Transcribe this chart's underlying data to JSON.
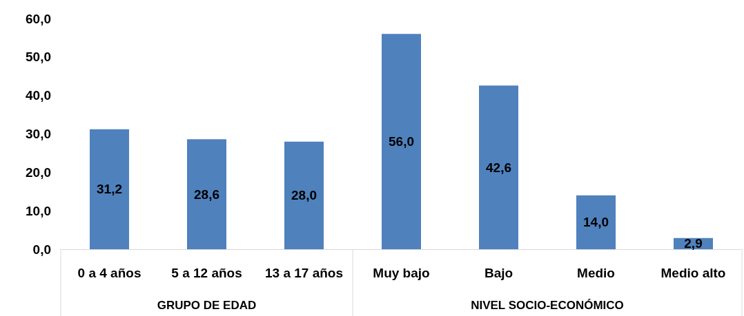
{
  "chart_data": {
    "type": "bar",
    "categories": [
      "0 a 4 años",
      "5 a 12 años",
      "13 a 17 años",
      "Muy bajo",
      "Bajo",
      "Medio",
      "Medio alto"
    ],
    "values": [
      31.2,
      28.6,
      28.0,
      56.0,
      42.6,
      14.0,
      2.9
    ],
    "value_labels": [
      "31,2",
      "28,6",
      "28,0",
      "56,0",
      "42,6",
      "14,0",
      "2,9"
    ],
    "color": "#4f81bd",
    "grid": false,
    "ylim": [
      0,
      60
    ],
    "yticks": [
      {
        "value": 0,
        "label": "0,0"
      },
      {
        "value": 10,
        "label": "10,0"
      },
      {
        "value": 20,
        "label": "20,0"
      },
      {
        "value": 30,
        "label": "30,0"
      },
      {
        "value": 40,
        "label": "40,0"
      },
      {
        "value": 50,
        "label": "50,0"
      },
      {
        "value": 60,
        "label": "60,0"
      }
    ],
    "annotations": [
      "GRUPO DE EDAD",
      "NIVEL SOCIO-ECONÓMICO"
    ]
  }
}
